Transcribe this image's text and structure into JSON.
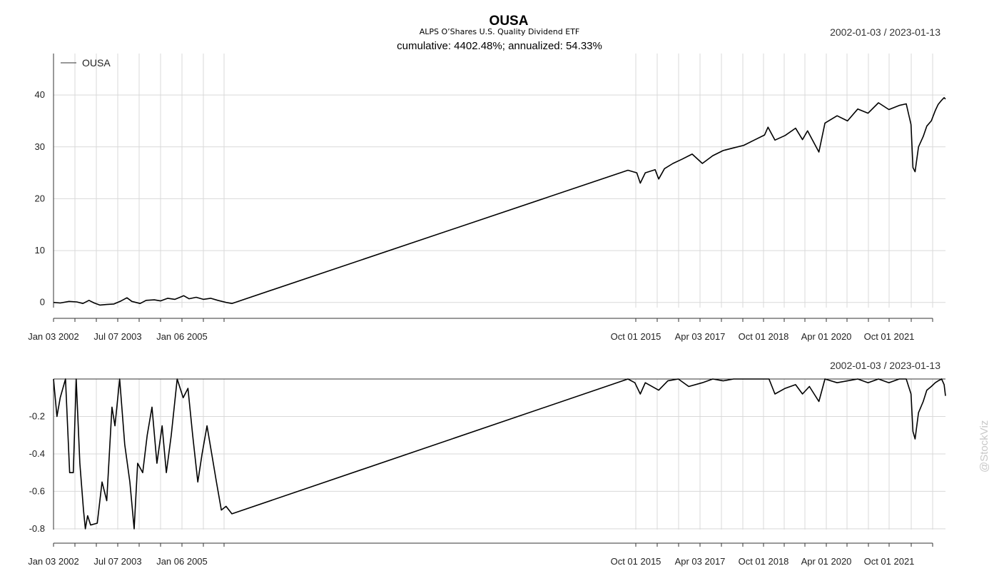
{
  "chart_data": [
    {
      "type": "line",
      "title": "OUSA",
      "subtitle": "ALPS O’Shares U.S. Quality Dividend ETF",
      "summary": "cumulative: 4402.48%; annualized: 54.33%",
      "date_range": "2002-01-03 / 2023-01-13",
      "legend": [
        "OUSA"
      ],
      "legend_position": "top-left",
      "grid": true,
      "ylim": [
        -1,
        48
      ],
      "yticks": [
        0,
        10,
        20,
        30,
        40
      ],
      "xtick_labels": [
        "Jan 03 2002",
        "Jul 07 2003",
        "Jan 06 2005",
        "Oct 01 2015",
        "Apr 03 2017",
        "Oct 01 2018",
        "Apr 01 2020",
        "Oct 01 2021"
      ],
      "series": [
        {
          "name": "OUSA",
          "points": [
            [
              "2002-01-03",
              0
            ],
            [
              "2002-03-01",
              -0.1
            ],
            [
              "2002-05-15",
              0.2
            ],
            [
              "2002-07-20",
              0.1
            ],
            [
              "2002-09-10",
              -0.2
            ],
            [
              "2002-11-01",
              0.4
            ],
            [
              "2002-12-15",
              -0.1
            ],
            [
              "2003-02-01",
              -0.5
            ],
            [
              "2003-04-01",
              -0.4
            ],
            [
              "2003-06-01",
              -0.3
            ],
            [
              "2003-08-01",
              0.3
            ],
            [
              "2003-09-20",
              0.9
            ],
            [
              "2003-11-01",
              0.2
            ],
            [
              "2004-01-10",
              -0.2
            ],
            [
              "2004-03-01",
              0.4
            ],
            [
              "2004-05-10",
              0.5
            ],
            [
              "2004-07-01",
              0.3
            ],
            [
              "2004-09-01",
              0.8
            ],
            [
              "2004-11-01",
              0.6
            ],
            [
              "2005-01-15",
              1.3
            ],
            [
              "2005-03-01",
              0.7
            ],
            [
              "2005-05-01",
              1.0
            ],
            [
              "2005-07-01",
              0.6
            ],
            [
              "2005-09-01",
              0.8
            ],
            [
              "2005-11-01",
              0.4
            ],
            [
              "2006-01-10",
              0.0
            ],
            [
              "2006-03-01",
              -0.2
            ],
            [
              "2015-05-15",
              25.5
            ],
            [
              "2015-08-01",
              25.0
            ],
            [
              "2015-09-01",
              23.0
            ],
            [
              "2015-10-15",
              25.0
            ],
            [
              "2016-01-10",
              25.6
            ],
            [
              "2016-02-10",
              23.8
            ],
            [
              "2016-04-01",
              25.8
            ],
            [
              "2016-06-15",
              26.8
            ],
            [
              "2016-09-01",
              27.6
            ],
            [
              "2016-12-01",
              28.6
            ],
            [
              "2017-03-01",
              26.8
            ],
            [
              "2017-06-01",
              28.3
            ],
            [
              "2017-09-01",
              29.3
            ],
            [
              "2017-12-01",
              29.8
            ],
            [
              "2018-03-01",
              30.3
            ],
            [
              "2018-06-01",
              31.3
            ],
            [
              "2018-09-01",
              32.3
            ],
            [
              "2018-10-01",
              33.8
            ],
            [
              "2018-12-01",
              31.3
            ],
            [
              "2019-03-01",
              32.2
            ],
            [
              "2019-06-01",
              33.6
            ],
            [
              "2019-08-01",
              31.4
            ],
            [
              "2019-09-15",
              33.1
            ],
            [
              "2019-12-24",
              29.0
            ],
            [
              "2020-02-15",
              34.6
            ],
            [
              "2020-06-01",
              36.0
            ],
            [
              "2020-09-01",
              35.0
            ],
            [
              "2020-12-01",
              37.3
            ],
            [
              "2021-03-01",
              36.5
            ],
            [
              "2021-06-01",
              38.5
            ],
            [
              "2021-09-01",
              37.2
            ],
            [
              "2021-12-01",
              38.0
            ],
            [
              "2022-02-01",
              38.3
            ],
            [
              "2022-03-15",
              34.3
            ],
            [
              "2022-04-01",
              26.0
            ],
            [
              "2022-04-20",
              25.2
            ],
            [
              "2022-05-20",
              30.0
            ],
            [
              "2022-07-01",
              32.0
            ],
            [
              "2022-08-01",
              34.0
            ],
            [
              "2022-09-10",
              35.0
            ],
            [
              "2022-10-15",
              37.0
            ],
            [
              "2022-11-10",
              38.2
            ],
            [
              "2022-12-10",
              39.0
            ],
            [
              "2023-01-01",
              39.5
            ],
            [
              "2023-01-13",
              39.2
            ]
          ]
        }
      ]
    },
    {
      "type": "line",
      "title": "",
      "date_range": "2002-01-03 / 2023-01-13",
      "grid": true,
      "ylim": [
        -0.85,
        0
      ],
      "yticks": [
        -0.2,
        -0.4,
        -0.6,
        -0.8
      ],
      "xtick_labels": [
        "Jan 03 2002",
        "Jul 07 2003",
        "Jan 06 2005",
        "Oct 01 2015",
        "Apr 03 2017",
        "Oct 01 2018",
        "Apr 01 2020",
        "Oct 01 2021"
      ],
      "series": [
        {
          "name": "",
          "points": [
            [
              "2002-01-03",
              0
            ],
            [
              "2002-02-01",
              -0.2
            ],
            [
              "2002-03-01",
              -0.1
            ],
            [
              "2002-04-15",
              0.0
            ],
            [
              "2002-05-20",
              -0.5
            ],
            [
              "2002-06-20",
              -0.5
            ],
            [
              "2002-07-15",
              0.0
            ],
            [
              "2002-08-15",
              -0.45
            ],
            [
              "2002-09-15",
              -0.7
            ],
            [
              "2002-10-01",
              -0.8
            ],
            [
              "2002-10-20",
              -0.73
            ],
            [
              "2002-11-15",
              -0.78
            ],
            [
              "2003-01-10",
              -0.77
            ],
            [
              "2003-02-20",
              -0.55
            ],
            [
              "2003-04-01",
              -0.65
            ],
            [
              "2003-05-15",
              -0.15
            ],
            [
              "2003-06-10",
              -0.25
            ],
            [
              "2003-07-20",
              0.0
            ],
            [
              "2003-09-01",
              -0.35
            ],
            [
              "2003-10-15",
              -0.55
            ],
            [
              "2003-11-20",
              -0.8
            ],
            [
              "2003-12-20",
              -0.45
            ],
            [
              "2004-02-01",
              -0.5
            ],
            [
              "2004-03-10",
              -0.3
            ],
            [
              "2004-04-20",
              -0.15
            ],
            [
              "2004-06-01",
              -0.45
            ],
            [
              "2004-07-15",
              -0.25
            ],
            [
              "2004-08-20",
              -0.5
            ],
            [
              "2004-10-01",
              -0.3
            ],
            [
              "2004-11-20",
              0.0
            ],
            [
              "2005-01-10",
              -0.1
            ],
            [
              "2005-02-20",
              -0.05
            ],
            [
              "2005-04-01",
              -0.3
            ],
            [
              "2005-05-15",
              -0.55
            ],
            [
              "2005-06-20",
              -0.4
            ],
            [
              "2005-08-01",
              -0.25
            ],
            [
              "2005-09-10",
              -0.4
            ],
            [
              "2005-10-20",
              -0.55
            ],
            [
              "2005-12-01",
              -0.7
            ],
            [
              "2006-01-10",
              -0.68
            ],
            [
              "2006-03-01",
              -0.72
            ],
            [
              "2015-05-15",
              0.0
            ],
            [
              "2015-07-15",
              -0.02
            ],
            [
              "2015-09-01",
              -0.08
            ],
            [
              "2015-10-15",
              -0.02
            ],
            [
              "2016-02-10",
              -0.06
            ],
            [
              "2016-05-01",
              -0.01
            ],
            [
              "2016-08-01",
              0.0
            ],
            [
              "2016-11-01",
              -0.04
            ],
            [
              "2017-03-01",
              -0.02
            ],
            [
              "2017-06-01",
              0.0
            ],
            [
              "2017-09-01",
              -0.01
            ],
            [
              "2017-12-01",
              0.0
            ],
            [
              "2018-03-01",
              0.0
            ],
            [
              "2018-06-01",
              0.0
            ],
            [
              "2018-09-01",
              0.0
            ],
            [
              "2018-10-10",
              0.0
            ],
            [
              "2018-12-01",
              -0.08
            ],
            [
              "2019-03-01",
              -0.05
            ],
            [
              "2019-06-01",
              -0.03
            ],
            [
              "2019-08-01",
              -0.08
            ],
            [
              "2019-10-01",
              -0.04
            ],
            [
              "2019-12-24",
              -0.12
            ],
            [
              "2020-02-15",
              0.0
            ],
            [
              "2020-06-01",
              -0.02
            ],
            [
              "2020-09-01",
              -0.01
            ],
            [
              "2020-12-01",
              0.0
            ],
            [
              "2021-03-01",
              -0.02
            ],
            [
              "2021-06-01",
              0.0
            ],
            [
              "2021-09-01",
              -0.02
            ],
            [
              "2021-12-01",
              0.0
            ],
            [
              "2022-02-01",
              0.0
            ],
            [
              "2022-03-15",
              -0.08
            ],
            [
              "2022-04-01",
              -0.28
            ],
            [
              "2022-04-20",
              -0.32
            ],
            [
              "2022-05-20",
              -0.18
            ],
            [
              "2022-07-01",
              -0.12
            ],
            [
              "2022-08-01",
              -0.06
            ],
            [
              "2022-09-10",
              -0.04
            ],
            [
              "2022-10-15",
              -0.02
            ],
            [
              "2022-11-10",
              -0.01
            ],
            [
              "2022-12-10",
              0.0
            ],
            [
              "2023-01-01",
              -0.03
            ],
            [
              "2023-01-13",
              -0.09
            ]
          ]
        }
      ]
    }
  ],
  "watermark": "@StockViz"
}
